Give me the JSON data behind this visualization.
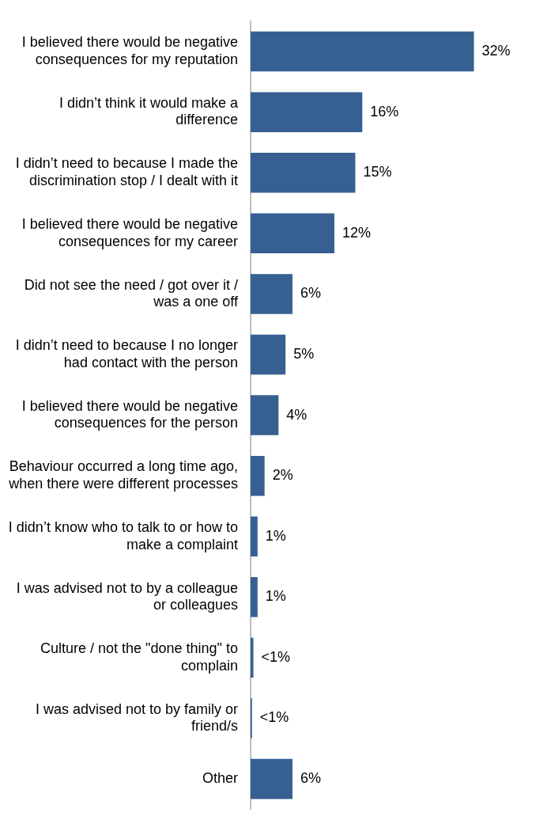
{
  "chart_data": {
    "type": "bar",
    "orientation": "horizontal",
    "categories": [
      "I believed there would be negative consequences for my reputation",
      "I didn’t think it would make a difference",
      "I didn’t need to because I made the discrimination stop / I dealt with it",
      "I believed there would be negative consequences for my career",
      "Did not see the need / got over it / was a one off",
      "I didn’t need to because I no longer had contact with the person",
      "I believed there would be negative consequences for the person",
      "Behaviour occurred a long time ago, when there were different processes",
      "I didn’t know who to talk to or how to make a complaint",
      "I was advised not to by a colleague or colleagues",
      "Culture / not the \"done thing\" to complain",
      "I was advised not to by family or friend/s",
      "Other"
    ],
    "values": [
      32,
      16,
      15,
      12,
      6,
      5,
      4,
      2,
      1,
      1,
      0.4,
      0.2,
      6
    ],
    "value_labels": [
      "32%",
      "16%",
      "15%",
      "12%",
      "6%",
      "5%",
      "4%",
      "2%",
      "1%",
      "1%",
      "<1%",
      "<1%",
      "6%"
    ],
    "color": "#376092",
    "tick_labels": "y"
  }
}
